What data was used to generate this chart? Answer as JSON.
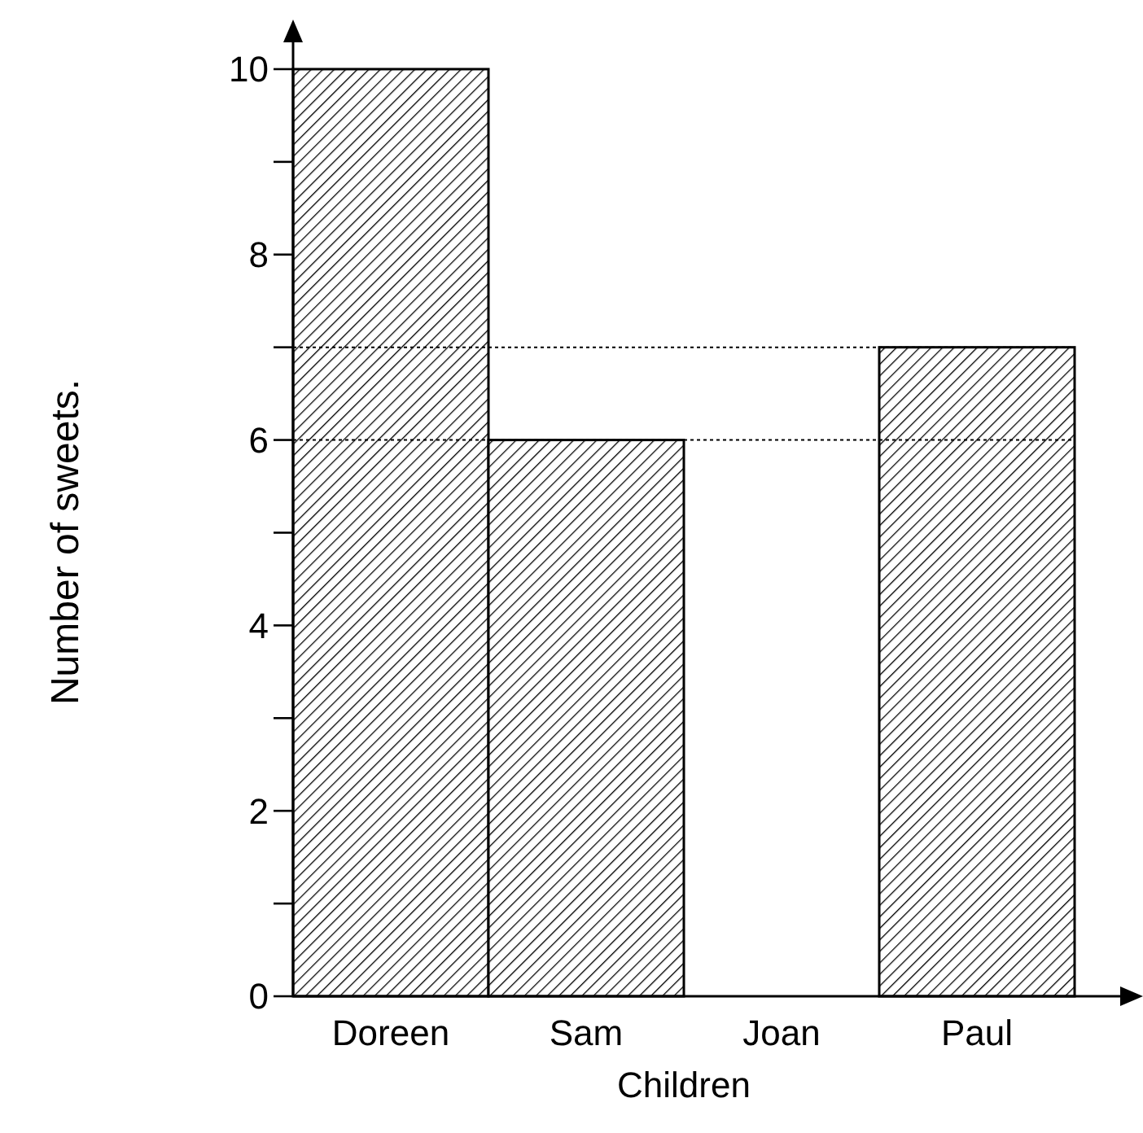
{
  "chart_data": {
    "type": "bar",
    "xlabel": "Children",
    "ylabel": "Number of sweets.",
    "categories": [
      "Doreen",
      "Sam",
      "Joan",
      "Paul"
    ],
    "values": [
      10,
      6,
      0,
      7
    ],
    "color": "#000000",
    "ylim": [
      0,
      10.5
    ],
    "yticks": [
      0,
      {
        "value": 1,
        "label": null
      },
      2,
      {
        "value": 3,
        "label": null
      },
      4,
      {
        "value": 5,
        "label": null
      },
      6,
      {
        "value": 7,
        "label": null
      },
      8,
      {
        "value": 9,
        "label": null
      },
      10
    ],
    "ref_lines": [
      {
        "axis": "y",
        "value": 7,
        "color": "#000000",
        "line_style": "dotted"
      },
      {
        "axis": "y",
        "value": 6,
        "color": "#000000",
        "line_style": "dotted"
      }
    ],
    "grid": false
  }
}
